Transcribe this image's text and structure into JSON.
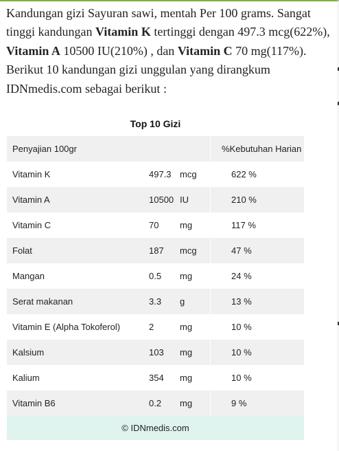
{
  "intro": {
    "segments": [
      {
        "text": "Kandungan gizi Sayuran sawi, mentah Per 100 grams. Sangat tinggi kandungan ",
        "bold": false
      },
      {
        "text": "Vitamin K",
        "bold": true
      },
      {
        "text": " tertinggi dengan 497.3 mcg(622%), ",
        "bold": false
      },
      {
        "text": "Vitamin A",
        "bold": true
      },
      {
        "text": " 10500 IU(210%) , dan ",
        "bold": false
      },
      {
        "text": "Vitamin C",
        "bold": true
      },
      {
        "text": " 70 mg(117%). Berikut 10 kandungan gizi unggulan yang dirangkum IDNmedis.com sebagai berikut :",
        "bold": false
      }
    ]
  },
  "table": {
    "title": "Top 10 Gizi",
    "header": {
      "serving": "Penyajian 100gr",
      "daily_need": "%Kebutuhan Harian"
    },
    "rows": [
      {
        "name": "Vitamin K",
        "value": "497.3",
        "unit": "mcg",
        "percent": "622 %"
      },
      {
        "name": "Vitamin A",
        "value": "10500",
        "unit": "IU",
        "percent": "210 %"
      },
      {
        "name": "Vitamin C",
        "value": "70",
        "unit": "mg",
        "percent": "117 %"
      },
      {
        "name": "Folat",
        "value": "187",
        "unit": "mcg",
        "percent": "47 %"
      },
      {
        "name": "Mangan",
        "value": "0.5",
        "unit": "mg",
        "percent": "24 %"
      },
      {
        "name": "Serat makanan",
        "value": "3.3",
        "unit": "g",
        "percent": "13 %"
      },
      {
        "name": "Vitamin E (Alpha Tokoferol)",
        "value": "2",
        "unit": "mg",
        "percent": "10 %"
      },
      {
        "name": "Kalsium",
        "value": "103",
        "unit": "mg",
        "percent": "10 %"
      },
      {
        "name": "Kalium",
        "value": "354",
        "unit": "mg",
        "percent": "10 %"
      },
      {
        "name": "Vitamin B6",
        "value": "0.2",
        "unit": "mg",
        "percent": "9 %"
      }
    ],
    "footer": "© IDNmedis.com"
  },
  "colors": {
    "accent_top": "#7cb342",
    "row_shade": "#f0f0f0",
    "footer_bg": "#e0f4ef",
    "text": "#222222"
  }
}
